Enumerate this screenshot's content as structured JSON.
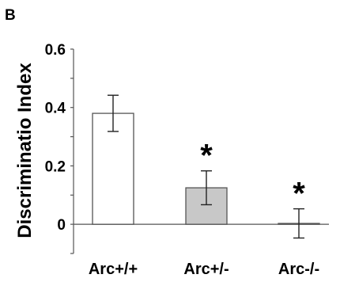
{
  "panel_label": "B",
  "chart_data": {
    "type": "bar",
    "categories": [
      "Arc+/+",
      "Arc+/-",
      "Arc-/-"
    ],
    "values": [
      0.38,
      0.125,
      0.003
    ],
    "errors": [
      0.062,
      0.058,
      0.05
    ],
    "bar_colors": [
      "#ffffff",
      "#c8c8c8",
      "#ffffff"
    ],
    "significance": [
      "",
      "*",
      "*"
    ],
    "ylabel": "Discriminatio Index",
    "xlabel": "",
    "ylim": [
      -0.1,
      0.6
    ],
    "yticks": [
      0,
      0.2,
      0.4,
      0.6
    ],
    "ytick_labels": [
      "0",
      "0.2",
      "0.4",
      "0.6"
    ],
    "grid": false
  }
}
